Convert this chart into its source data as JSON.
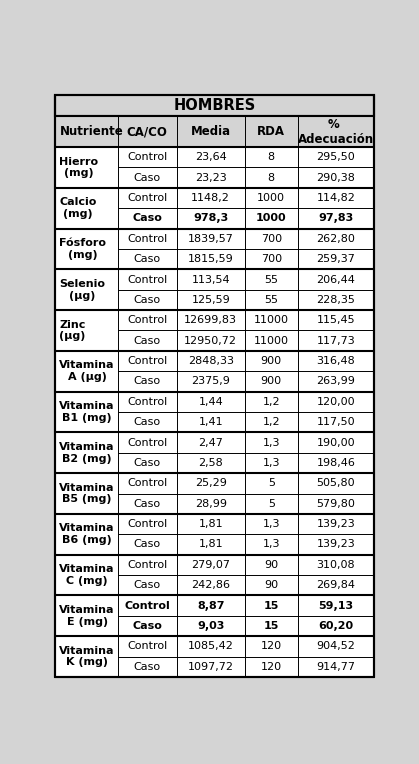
{
  "title": "HOMBRES",
  "col_headers": [
    "Nutriente",
    "CA/CO",
    "Media",
    "RDA",
    "% \nAdecuación"
  ],
  "nutrients": [
    {
      "name": "Hierro\n(mg)",
      "rows": [
        {
          "caco": "Control",
          "media": "23,64",
          "rda": "8",
          "adec": "295,50",
          "bold": false
        },
        {
          "caco": "Caso",
          "media": "23,23",
          "rda": "8",
          "adec": "290,38",
          "bold": false
        }
      ]
    },
    {
      "name": "Calcio\n(mg)",
      "rows": [
        {
          "caco": "Control",
          "media": "1148,2",
          "rda": "1000",
          "adec": "114,82",
          "bold": false
        },
        {
          "caco": "Caso",
          "media": "978,3",
          "rda": "1000",
          "adec": "97,83",
          "bold": true
        }
      ]
    },
    {
      "name": "Fósforo\n(mg)",
      "rows": [
        {
          "caco": "Control",
          "media": "1839,57",
          "rda": "700",
          "adec": "262,80",
          "bold": false
        },
        {
          "caco": "Caso",
          "media": "1815,59",
          "rda": "700",
          "adec": "259,37",
          "bold": false
        }
      ]
    },
    {
      "name": "Selenio\n(µg)",
      "rows": [
        {
          "caco": "Control",
          "media": "113,54",
          "rda": "55",
          "adec": "206,44",
          "bold": false
        },
        {
          "caco": "Caso",
          "media": "125,59",
          "rda": "55",
          "adec": "228,35",
          "bold": false
        }
      ]
    },
    {
      "name": "Zinc\n(µg)",
      "rows": [
        {
          "caco": "Control",
          "media": "12699,83",
          "rda": "11000",
          "adec": "115,45",
          "bold": false
        },
        {
          "caco": "Caso",
          "media": "12950,72",
          "rda": "11000",
          "adec": "117,73",
          "bold": false
        }
      ]
    },
    {
      "name": "Vitamina\nA (µg)",
      "rows": [
        {
          "caco": "Control",
          "media": "2848,33",
          "rda": "900",
          "adec": "316,48",
          "bold": false
        },
        {
          "caco": "Caso",
          "media": "2375,9",
          "rda": "900",
          "adec": "263,99",
          "bold": false
        }
      ]
    },
    {
      "name": "Vitamina\nB1 (mg)",
      "rows": [
        {
          "caco": "Control",
          "media": "1,44",
          "rda": "1,2",
          "adec": "120,00",
          "bold": false
        },
        {
          "caco": "Caso",
          "media": "1,41",
          "rda": "1,2",
          "adec": "117,50",
          "bold": false
        }
      ]
    },
    {
      "name": "Vitamina\nB2 (mg)",
      "rows": [
        {
          "caco": "Control",
          "media": "2,47",
          "rda": "1,3",
          "adec": "190,00",
          "bold": false
        },
        {
          "caco": "Caso",
          "media": "2,58",
          "rda": "1,3",
          "adec": "198,46",
          "bold": false
        }
      ]
    },
    {
      "name": "Vitamina\nB5 (mg)",
      "rows": [
        {
          "caco": "Control",
          "media": "25,29",
          "rda": "5",
          "adec": "505,80",
          "bold": false
        },
        {
          "caco": "Caso",
          "media": "28,99",
          "rda": "5",
          "adec": "579,80",
          "bold": false
        }
      ]
    },
    {
      "name": "Vitamina\nB6 (mg)",
      "rows": [
        {
          "caco": "Control",
          "media": "1,81",
          "rda": "1,3",
          "adec": "139,23",
          "bold": false
        },
        {
          "caco": "Caso",
          "media": "1,81",
          "rda": "1,3",
          "adec": "139,23",
          "bold": false
        }
      ]
    },
    {
      "name": "Vitamina\nC (mg)",
      "rows": [
        {
          "caco": "Control",
          "media": "279,07",
          "rda": "90",
          "adec": "310,08",
          "bold": false
        },
        {
          "caco": "Caso",
          "media": "242,86",
          "rda": "90",
          "adec": "269,84",
          "bold": false
        }
      ]
    },
    {
      "name": "Vitamina\nE (mg)",
      "rows": [
        {
          "caco": "Control",
          "media": "8,87",
          "rda": "15",
          "adec": "59,13",
          "bold": true
        },
        {
          "caco": "Caso",
          "media": "9,03",
          "rda": "15",
          "adec": "60,20",
          "bold": true
        }
      ]
    },
    {
      "name": "Vitamina\nK (mg)",
      "rows": [
        {
          "caco": "Control",
          "media": "1085,42",
          "rda": "120",
          "adec": "904,52",
          "bold": false
        },
        {
          "caco": "Caso",
          "media": "1097,72",
          "rda": "120",
          "adec": "914,77",
          "bold": false
        }
      ]
    }
  ],
  "fig_bg": "#d4d4d4",
  "table_bg": "#ffffff",
  "header_bg": "#d4d4d4",
  "border_thick": 1.5,
  "border_thin": 0.7,
  "border_color": "#000000",
  "text_color": "#000000",
  "title_fontsize": 10.5,
  "header_fontsize": 8.5,
  "cell_fontsize": 8.0,
  "nutrient_fontsize": 8.0
}
